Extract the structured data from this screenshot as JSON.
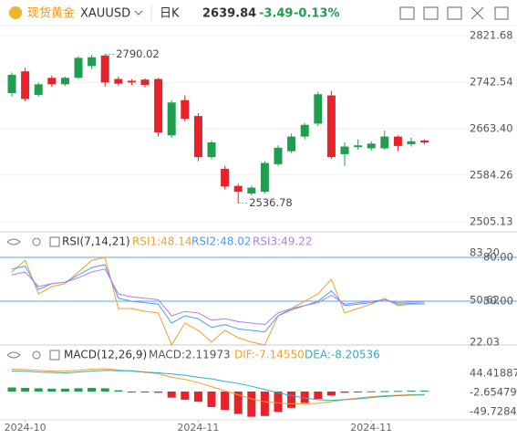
{
  "header": {
    "name": "现货黄金",
    "symbol": "XAUUSD",
    "period": "日K",
    "price": "2639.84",
    "change": "-3.49",
    "change_pct": "-0.13%"
  },
  "chart_data": [
    {
      "type": "candlestick",
      "up_color": "#1e9e4e",
      "down_color": "#e8222a",
      "open": [
        2724,
        2761,
        2721,
        2750,
        2739,
        2750,
        2770,
        2788,
        2748,
        2745,
        2747,
        2748,
        2652,
        2712,
        2685,
        2615,
        2595,
        2566,
        2553,
        2556,
        2603,
        2625,
        2650,
        2672,
        2720,
        2620,
        2632,
        2630,
        2630,
        2650,
        2637,
        2643.33
      ],
      "high": [
        2759,
        2767,
        2742,
        2754,
        2752,
        2787,
        2789,
        2790.02,
        2752,
        2748,
        2749,
        2750,
        2712,
        2720,
        2690,
        2643,
        2600,
        2570,
        2566,
        2608,
        2635,
        2655,
        2673,
        2726,
        2728,
        2640,
        2645,
        2642,
        2660,
        2652,
        2648,
        2645
      ],
      "low": [
        2718,
        2710,
        2718,
        2735,
        2736,
        2748,
        2765,
        2735,
        2736,
        2738,
        2734,
        2650,
        2648,
        2676,
        2608,
        2612,
        2560,
        2536.78,
        2550,
        2553,
        2600,
        2622,
        2645,
        2668,
        2612,
        2600,
        2628,
        2626,
        2628,
        2625,
        2633,
        2637
      ],
      "close": [
        2755,
        2714,
        2739,
        2739,
        2750,
        2784,
        2785,
        2742,
        2740,
        2742,
        2738,
        2657,
        2708,
        2680,
        2615,
        2640,
        2565,
        2556,
        2563,
        2605,
        2631,
        2650,
        2670,
        2722,
        2615,
        2633,
        2635,
        2638,
        2650,
        2634,
        2642,
        2639.84
      ],
      "ylim": [
        2494,
        2839
      ],
      "yticks": [
        2821.68,
        2742.54,
        {
          "value": 2663.4,
          "label": "2663.40"
        },
        2584.26,
        2505.13
      ],
      "xticks": [
        {
          "value": 1,
          "label": "2024-10"
        },
        {
          "value": 14,
          "label": "2024-11"
        },
        {
          "value": 27,
          "label": "2024-11"
        }
      ],
      "grid": true
    },
    {
      "type": "line",
      "title": "RSI(7,14,21)",
      "series": [
        {
          "name": "RSI1:48.14",
          "color": "#f5a02a",
          "values": [
            70,
            78,
            55,
            60,
            62,
            70,
            78,
            80,
            45,
            45,
            43,
            42,
            20,
            35,
            30,
            22,
            30,
            25,
            22,
            20,
            40,
            45,
            50,
            55,
            65,
            42,
            45,
            48,
            52,
            47,
            48,
            48.14
          ]
        },
        {
          "name": "RSI2:48.02",
          "color": "#4d9ef0",
          "values": [
            72,
            74,
            58,
            62,
            63,
            68,
            73,
            75,
            52,
            50,
            49,
            48,
            35,
            40,
            38,
            32,
            34,
            31,
            30,
            29,
            40,
            44,
            47,
            50,
            57,
            47,
            48,
            49,
            51,
            48,
            48.5,
            48.02
          ]
        },
        {
          "name": "RSI3:49.22",
          "color": "#b07fe8",
          "values": [
            68,
            70,
            60,
            62,
            63,
            66,
            70,
            72,
            55,
            53,
            52,
            51,
            40,
            43,
            42,
            37,
            38,
            36,
            35,
            34,
            42,
            45,
            47,
            49,
            54,
            48,
            49,
            50,
            51,
            49,
            49.5,
            49.22
          ]
        }
      ],
      "ylim": [
        20,
        86.25
      ],
      "yticks": [
        {
          "value": 83.2,
          "label": "83.20"
        },
        {
          "value": 50.62,
          "label": "50.62"
        },
        22.03
      ],
      "reference_lines": [
        {
          "value": 80,
          "label": "80.00"
        },
        {
          "value": 50,
          "label": "50.00"
        }
      ],
      "reference_color": "#5aa7e8"
    },
    {
      "type": "macd",
      "title": "MACD(12,26,9)",
      "series": [
        {
          "name": "MACD:2.11973",
          "color": "#555555",
          "up_color": "#1e9e4e",
          "down_color": "#e8222a",
          "values": [
            10,
            9,
            8,
            7,
            7,
            8,
            9,
            8,
            3,
            -1,
            -2,
            -3,
            -15,
            -20,
            -25,
            -38,
            -45,
            -55,
            -62,
            -60,
            -50,
            -40,
            -28,
            -18,
            -10,
            -3,
            -1,
            0.5,
            1,
            1.5,
            2,
            2.11973
          ]
        },
        {
          "name": "DIF:-7.14550",
          "color": "#f5a02a",
          "values": [
            55,
            54,
            52,
            50,
            50,
            52,
            55,
            56,
            53,
            50,
            47,
            44,
            35,
            30,
            22,
            12,
            2,
            -8,
            -18,
            -25,
            -28,
            -30,
            -30,
            -29,
            -25,
            -20,
            -16,
            -13,
            -10,
            -9,
            -8,
            -7.1455
          ]
        },
        {
          "name": "DEA:-8.20536",
          "color": "#2fb0c0",
          "values": [
            50,
            50,
            48,
            47,
            46,
            48,
            50,
            52,
            51,
            51,
            48,
            46,
            43,
            40,
            35,
            31,
            25,
            20,
            13,
            5,
            -3,
            -10,
            -16,
            -20,
            -22,
            -20,
            -18,
            -15,
            -12,
            -10,
            -9,
            -8.20536
          ]
        }
      ],
      "ylim": [
        -69.5,
        71.7
      ],
      "yticks": [
        44.41887,
        -2.65479,
        -49.72845
      ]
    }
  ]
}
